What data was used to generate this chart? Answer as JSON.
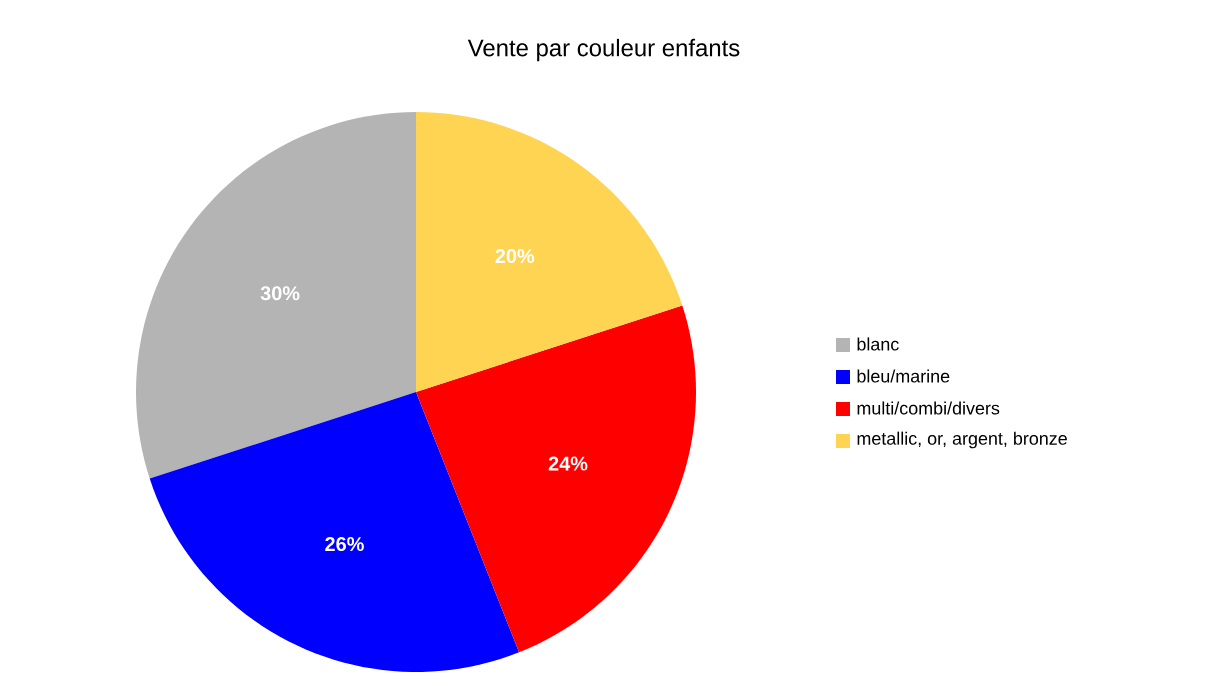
{
  "chart_data": {
    "type": "pie",
    "title": "Vente par couleur enfants",
    "categories": [
      "blanc",
      "bleu/marine",
      "multi/combi/divers",
      "metallic, or, argent, bronze"
    ],
    "values": [
      30,
      26,
      24,
      20
    ],
    "value_labels": [
      "30%",
      "26%",
      "24%",
      "20%"
    ],
    "colors": [
      "#b4b4b4",
      "#0000ff",
      "#ff0000",
      "#ffd452"
    ],
    "legend": "right"
  }
}
